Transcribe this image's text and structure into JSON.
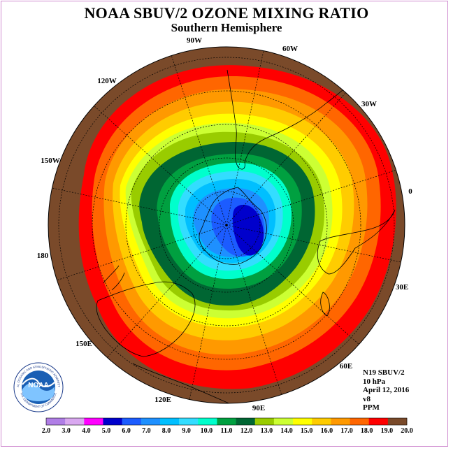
{
  "title": "NOAA SBUV/2 OZONE MIXING RATIO",
  "subtitle": "Southern Hemisphere",
  "longitude_labels": [
    "90W",
    "60W",
    "30W",
    "0",
    "30E",
    "60E",
    "90E",
    "120E",
    "150E",
    "180",
    "150W",
    "120W"
  ],
  "info": {
    "satellite": "N19 SBUV/2",
    "level": "10 hPa",
    "date": "April 12, 2016",
    "version": "v8",
    "units": "PPM"
  },
  "logo": {
    "text": "NOAA",
    "ring_text": "NATIONAL OCEANIC AND ATMOSPHERIC ADMINISTRATION",
    "ring_text_bottom": "U.S. DEPARTMENT OF COMMERCE"
  },
  "colorbar": {
    "tick_labels": [
      "2.0",
      "3.0",
      "4.0",
      "5.0",
      "6.0",
      "7.0",
      "8.0",
      "9.0",
      "10.0",
      "11.0",
      "12.0",
      "13.0",
      "14.0",
      "15.0",
      "16.0",
      "17.0",
      "18.0",
      "19.0",
      "20.0"
    ],
    "colors": [
      "#b07ee6",
      "#d9a8f0",
      "#ff00ff",
      "#0000cc",
      "#1c5cff",
      "#1e90ff",
      "#00bfff",
      "#33ddff",
      "#00ffcc",
      "#00a040",
      "#006633",
      "#99cc00",
      "#ccff33",
      "#ffff00",
      "#ffcc00",
      "#ff9900",
      "#ff6600",
      "#ff0000",
      "#7a4a2a"
    ]
  }
}
